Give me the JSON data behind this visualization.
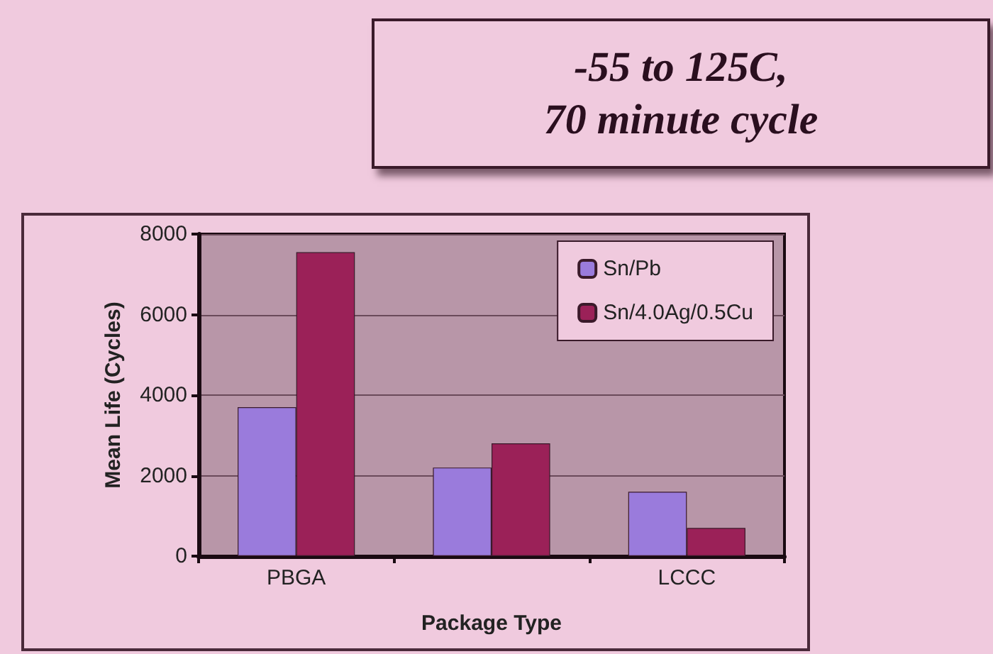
{
  "chart_data": {
    "type": "bar",
    "title": "-55 to 125C,\n70 minute cycle",
    "xlabel": "Package Type",
    "ylabel": "Mean Life (Cycles)",
    "categories": [
      "PBGA",
      null,
      "LCCC"
    ],
    "series": [
      {
        "name": "Sn/Pb",
        "color": "#9a7bdc",
        "values": [
          3700,
          2200,
          1600
        ]
      },
      {
        "name": "Sn/4.0Ag/0.5Cu",
        "color": "#9b2158",
        "values": [
          7550,
          2800,
          700
        ]
      }
    ],
    "ylim": [
      0,
      8000
    ],
    "yticks": [
      0,
      2000,
      4000,
      6000,
      8000
    ],
    "grid": "y",
    "legend": "top right"
  }
}
